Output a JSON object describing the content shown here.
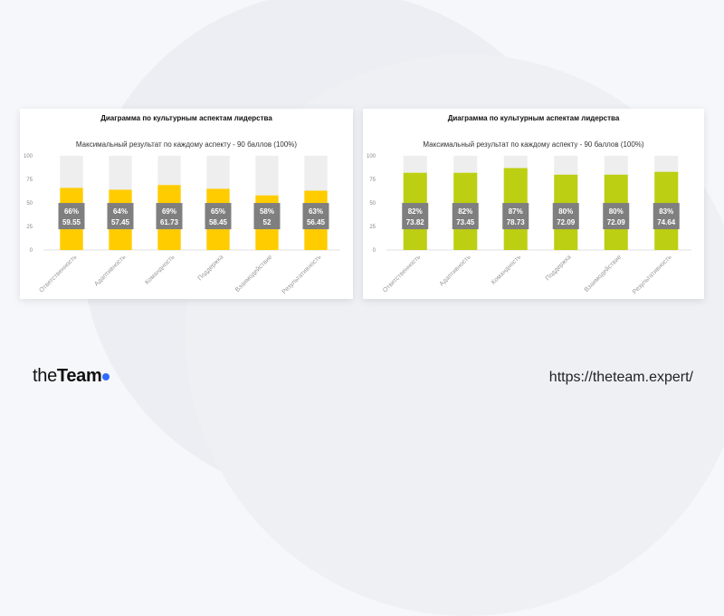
{
  "footer": {
    "logo_light": "the",
    "logo_bold": "Team",
    "url": "https://theteam.expert/"
  },
  "chart_data": [
    {
      "type": "bar",
      "stacked": true,
      "title": "Диаграмма по культурным аспектам лидерства",
      "subtitle": "Максимальный результат по каждому аспекту - 90 баллов (100%)",
      "categories": [
        "Ответственность",
        "Адаптивность",
        "Командность",
        "Поддержка",
        "Взаимодействие",
        "Результативность"
      ],
      "values": [
        66,
        64,
        69,
        65,
        58,
        63
      ],
      "max_value": 100,
      "labels_pct": [
        "66%",
        "64%",
        "69%",
        "65%",
        "58%",
        "63%"
      ],
      "labels_score": [
        "59.55",
        "57.45",
        "61.73",
        "58.45",
        "52",
        "56.45"
      ],
      "ylim": [
        0,
        100
      ],
      "yticks": [
        0,
        25,
        50,
        75,
        100
      ],
      "grid": false,
      "colors": {
        "bar": "#ffcc00",
        "remainder": "#eeeeee",
        "label_bg": "#7f7f7f",
        "label_text": "#ffffff"
      }
    },
    {
      "type": "bar",
      "stacked": true,
      "title": "Диаграмма по культурным аспектам лидерства",
      "subtitle": "Максимальный результат по каждому аспекту - 90 баллов (100%)",
      "categories": [
        "Ответственность",
        "Адаптивность",
        "Командность",
        "Поддержка",
        "Взаимодействие",
        "Результативность"
      ],
      "values": [
        82,
        82,
        87,
        80,
        80,
        83
      ],
      "max_value": 100,
      "labels_pct": [
        "82%",
        "82%",
        "87%",
        "80%",
        "80%",
        "83%"
      ],
      "labels_score": [
        "73.82",
        "73.45",
        "78.73",
        "72.09",
        "72.09",
        "74.64"
      ],
      "ylim": [
        0,
        100
      ],
      "yticks": [
        0,
        25,
        50,
        75,
        100
      ],
      "grid": false,
      "colors": {
        "bar": "#bccf12",
        "remainder": "#eeeeee",
        "label_bg": "#7f7f7f",
        "label_text": "#ffffff"
      }
    }
  ]
}
